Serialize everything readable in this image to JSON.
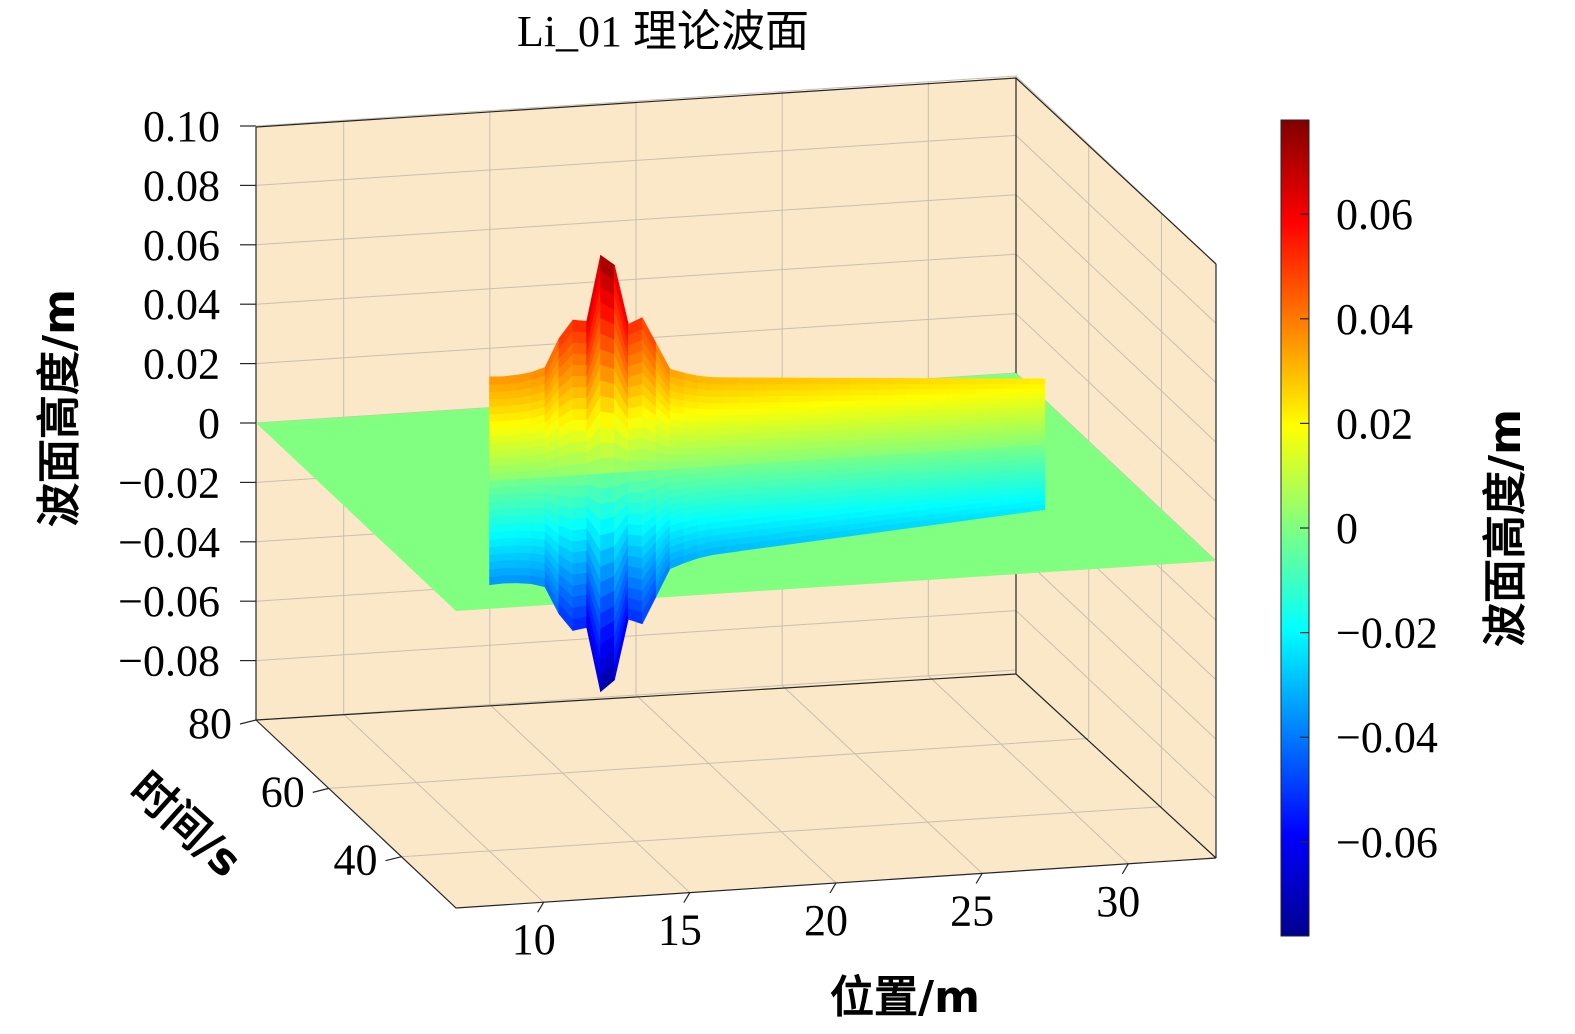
{
  "chart_data": {
    "type": "surface3d",
    "title": "Li_01 理论波面",
    "xlabel": "位置/m",
    "ylabel": "时间/s",
    "zlabel": "波面高度/m",
    "colorbar_label": "波面高度/m",
    "colormap": "jet",
    "xlim": [
      7,
      33
    ],
    "ylim": [
      25,
      80
    ],
    "zlim": [
      -0.1,
      0.1
    ],
    "x_ticks": [
      "10",
      "15",
      "20",
      "25",
      "30"
    ],
    "y_ticks": [
      "40",
      "60",
      "80"
    ],
    "z_ticks": [
      "0.10",
      "0.08",
      "0.06",
      "0.04",
      "0.02",
      "0",
      "−0.02",
      "−0.04",
      "−0.06",
      "−0.08"
    ],
    "colorbar_ticks": [
      "0.06",
      "0.04",
      "0.02",
      "0",
      "−0.02",
      "−0.04",
      "−0.06"
    ],
    "clim": [
      -0.078,
      0.078
    ],
    "surface_profile": {
      "description_note": "",
      "x_start": 12.5,
      "x_end": 31.5,
      "crest_at_x_start": 0.035,
      "crest_at_x_end": 0.022,
      "peak_amplitude": 0.078,
      "peak_x": 16.5
    },
    "background": "#fbe8c9",
    "grid": true
  }
}
